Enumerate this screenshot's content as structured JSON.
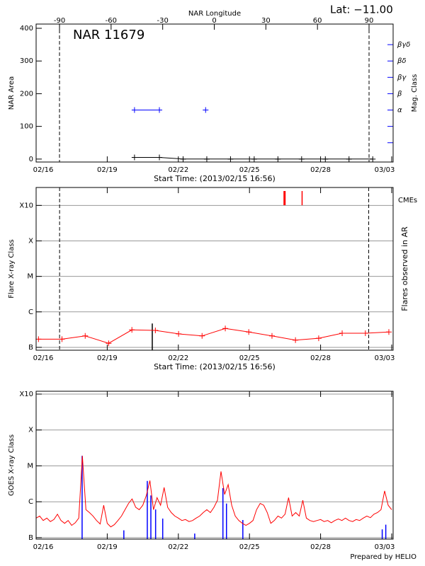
{
  "chart_data": [
    {
      "type": "line",
      "title": "NAR 11679",
      "annotation": "Lat: −11.00",
      "x_label": "Start Time: (2013/02/15 16:56)",
      "x2_label": "NAR Longitude",
      "y_label": "NAR Area",
      "y2_label": "Mag. Class",
      "xlim": [
        0,
        15.06
      ],
      "xticks": [
        {
          "value": 0,
          "label": "02/16"
        },
        {
          "value": 3,
          "label": "02/19"
        },
        {
          "value": 6,
          "label": "02/22"
        },
        {
          "value": 9,
          "label": "02/25"
        },
        {
          "value": 12,
          "label": "02/28"
        },
        {
          "value": 15,
          "label": "03/03"
        }
      ],
      "x2lim": [
        -103.6,
        104
      ],
      "x2ticks": [
        -90,
        -60,
        -30,
        0,
        30,
        60,
        90
      ],
      "ylim": [
        -9,
        413
      ],
      "yticks": [
        0,
        100,
        200,
        300,
        400
      ],
      "y2lim": [
        -9,
        413
      ],
      "y2color": "#0000ff",
      "y2ticks": [
        {
          "value": 50,
          "label": null
        },
        {
          "value": 100,
          "label": null
        },
        {
          "value": 150,
          "label": "α"
        },
        {
          "value": 200,
          "label": "β"
        },
        {
          "value": 250,
          "label": "βγ"
        },
        {
          "value": 300,
          "label": "βδ"
        },
        {
          "value": 350,
          "label": "βγδ"
        }
      ],
      "dashed_x2": [
        -90,
        90
      ],
      "series": [
        {
          "color": "#000000",
          "marker": "plus",
          "x": [
            4.15,
            5.2,
            6.2,
            7.2,
            8.2,
            9.2,
            10.2,
            11.2,
            12.2,
            13.2,
            14.2
          ],
          "values": [
            5,
            5,
            0,
            0,
            0,
            0,
            0,
            0,
            0,
            0,
            0
          ]
        },
        {
          "color": "#0000ff",
          "marker": "plus",
          "axis": "y2",
          "x": [
            4.15,
            5.2,
            6.2,
            7.15
          ],
          "values": [
            150,
            150,
            null,
            150
          ]
        }
      ]
    },
    {
      "type": "line",
      "log_y": true,
      "grid": true,
      "x_label": "Start Time: (2013/02/15 16:56)",
      "y_label": "Flare X-ray Class",
      "y2_label": "Flares observed in AR",
      "xlim": [
        0,
        15.06
      ],
      "xticks": [
        {
          "value": 0,
          "label": "02/16"
        },
        {
          "value": 3,
          "label": "02/19"
        },
        {
          "value": 6,
          "label": "02/22"
        },
        {
          "value": 9,
          "label": "02/25"
        },
        {
          "value": 12,
          "label": "02/28"
        },
        {
          "value": 15,
          "label": "03/03"
        }
      ],
      "ylim": [
        8.3e-08,
        0.0032
      ],
      "yticks": [
        {
          "value": 1e-07,
          "label": "B"
        },
        {
          "value": 1e-06,
          "label": "C"
        },
        {
          "value": 1e-05,
          "label": "M"
        },
        {
          "value": 0.0001,
          "label": "X"
        },
        {
          "value": 0.001,
          "label": "X10"
        }
      ],
      "dashed_x": [
        0.99,
        14.03
      ],
      "series": [
        {
          "color": "#ff0000",
          "marker": "plus",
          "x": [
            0.1,
            1.09,
            2.07,
            3.06,
            4.04,
            5.03,
            6.01,
            7.0,
            7.98,
            8.97,
            9.95,
            10.94,
            11.92,
            12.91,
            13.89,
            14.88
          ],
          "values": [
            1.7e-07,
            1.7e-07,
            2.1e-07,
            1.3e-07,
            3.1e-07,
            3e-07,
            2.4e-07,
            2.1e-07,
            3.4e-07,
            2.7e-07,
            2.1e-07,
            1.6e-07,
            1.8e-07,
            2.5e-07,
            2.5e-07,
            2.7e-07
          ]
        }
      ],
      "bars": {
        "color": "#000000",
        "x": [
          4.9
        ],
        "values": [
          4.7e-07
        ]
      },
      "cmes": {
        "name": "CMEs",
        "color": "#ff0000",
        "x": [
          10.48,
          11.22
        ]
      }
    },
    {
      "type": "line",
      "log_y": true,
      "grid": true,
      "y_label": "GOES X-ray Class",
      "xlim": [
        0,
        15.06
      ],
      "xticks": [
        {
          "value": 0,
          "label": "02/16"
        },
        {
          "value": 3,
          "label": "02/19"
        },
        {
          "value": 6,
          "label": "02/22"
        },
        {
          "value": 9,
          "label": "02/25"
        },
        {
          "value": 12,
          "label": "02/28"
        },
        {
          "value": 15,
          "label": "03/03"
        }
      ],
      "ylim": [
        9.1e-08,
        0.0012
      ],
      "yticks": [
        {
          "value": 1e-07,
          "label": "B"
        },
        {
          "value": 1e-06,
          "label": "C"
        },
        {
          "value": 1e-05,
          "label": "M"
        },
        {
          "value": 0.0001,
          "label": "X"
        },
        {
          "value": 0.001,
          "label": "X10"
        }
      ],
      "series": [
        {
          "color": "#ff0000",
          "x": [
            0,
            0.15,
            0.3,
            0.45,
            0.6,
            0.75,
            0.9,
            1.05,
            1.2,
            1.35,
            1.5,
            1.65,
            1.8,
            1.95,
            2.1,
            2.25,
            2.4,
            2.55,
            2.7,
            2.85,
            3.0,
            3.15,
            3.3,
            3.45,
            3.6,
            3.75,
            3.9,
            4.05,
            4.2,
            4.35,
            4.5,
            4.65,
            4.8,
            4.95,
            5.1,
            5.25,
            5.4,
            5.55,
            5.7,
            5.85,
            6.0,
            6.15,
            6.3,
            6.45,
            6.6,
            6.75,
            6.9,
            7.05,
            7.2,
            7.35,
            7.5,
            7.65,
            7.8,
            7.95,
            8.1,
            8.25,
            8.4,
            8.55,
            8.7,
            8.85,
            9.0,
            9.15,
            9.3,
            9.45,
            9.6,
            9.75,
            9.9,
            10.05,
            10.2,
            10.35,
            10.5,
            10.65,
            10.8,
            10.95,
            11.1,
            11.25,
            11.4,
            11.55,
            11.7,
            11.85,
            12.0,
            12.15,
            12.3,
            12.45,
            12.6,
            12.75,
            12.9,
            13.05,
            13.2,
            13.35,
            13.5,
            13.65,
            13.8,
            13.95,
            14.1,
            14.25,
            14.4,
            14.55,
            14.7,
            14.85,
            15.0
          ],
          "values": [
            3.5e-07,
            4e-07,
            3e-07,
            3.5e-07,
            2.8e-07,
            3.2e-07,
            4.5e-07,
            3e-07,
            2.5e-07,
            3e-07,
            2.2e-07,
            2.6e-07,
            3.5e-07,
            1.9e-05,
            6e-07,
            5e-07,
            4e-07,
            3e-07,
            2.4e-07,
            8e-07,
            2.5e-07,
            2e-07,
            2.3e-07,
            3e-07,
            4e-07,
            6e-07,
            9e-07,
            1.2e-06,
            7e-07,
            6e-07,
            8e-07,
            1.5e-06,
            3.9e-06,
            6e-07,
            1.3e-06,
            8e-07,
            2.5e-06,
            7e-07,
            5e-07,
            4e-07,
            3.5e-07,
            3e-07,
            3.2e-07,
            2.8e-07,
            3e-07,
            3.5e-07,
            4e-07,
            5e-07,
            6e-07,
            5e-07,
            7e-07,
            1.1e-06,
            7e-06,
            1.6e-06,
            3e-06,
            8e-07,
            4e-07,
            3e-07,
            2.5e-07,
            2.2e-07,
            2.5e-07,
            3e-07,
            6e-07,
            9e-07,
            8e-07,
            5e-07,
            2.5e-07,
            3e-07,
            4e-07,
            3.5e-07,
            4.5e-07,
            1.3e-06,
            4e-07,
            5e-07,
            4e-07,
            1.1e-06,
            3.5e-07,
            3e-07,
            2.8e-07,
            3e-07,
            3.2e-07,
            2.8e-07,
            3e-07,
            2.6e-07,
            3e-07,
            3.3e-07,
            3e-07,
            3.5e-07,
            3e-07,
            2.8e-07,
            3.2e-07,
            3e-07,
            3.5e-07,
            4e-07,
            3.6e-07,
            4.5e-07,
            5e-07,
            6e-07,
            2e-06,
            8e-07,
            6e-07
          ]
        }
      ],
      "bars": {
        "color": "#0000ff",
        "x": [
          1.94,
          3.7,
          4.69,
          4.84,
          5.04,
          5.34,
          6.69,
          7.88,
          8.03,
          8.72,
          14.6,
          14.75
        ],
        "values": [
          1.9e-05,
          1.6e-07,
          3.8e-06,
          1.5e-06,
          6.1e-07,
          3.4e-07,
          1.3e-07,
          2.4e-06,
          8.9e-07,
          3.1e-07,
          1.7e-07,
          2.3e-07
        ]
      }
    }
  ],
  "footer": "Prepared by HELIO"
}
